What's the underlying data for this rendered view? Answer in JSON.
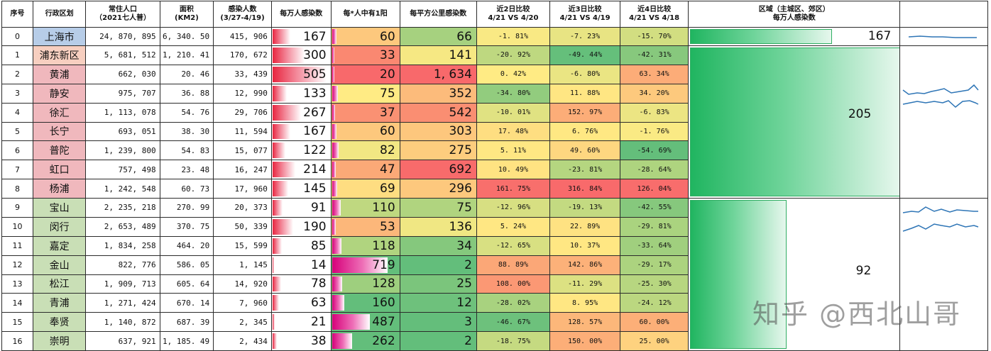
{
  "headers": {
    "idx": "序号",
    "district": "行政区划",
    "pop_l1": "常住人口",
    "pop_l2": "（2021七人普）",
    "area_l1": "面积",
    "area_l2": "(KM2)",
    "inf_l1": "感染人数",
    "inf_l2": "(3/27-4/19)",
    "per10k": "每万人感染数",
    "ratio": "每*人中有1阳",
    "perkm2": "每平方公里感染数",
    "c2_l1": "近2日比较",
    "c2_l2": "4/21 VS 4/20",
    "c3_l1": "近3日比较",
    "c3_l2": "4/21 VS 4/19",
    "c4_l1": "近4日比较",
    "c4_l2": "4/21 VS 4/18",
    "region_l1": "区域（主城区、郊区）",
    "region_l2": "每万人感染数"
  },
  "rows": [
    {
      "idx": "0",
      "name": "上海市",
      "pop": "24, 870, 895",
      "area": "6, 340. 50",
      "inf": "415, 906",
      "per10k": "167",
      "ratio": "60",
      "perkm2": "66",
      "c2": "-1. 81%",
      "c3": "-7. 23%",
      "c4": "-15. 70%"
    },
    {
      "idx": "1",
      "name": "浦东新区",
      "pop": "5, 681, 512",
      "area": "1, 210. 41",
      "inf": "170, 672",
      "per10k": "300",
      "ratio": "33",
      "perkm2": "141",
      "c2": "-20. 92%",
      "c3": "-49. 44%",
      "c4": "-42. 31%"
    },
    {
      "idx": "2",
      "name": "黄浦",
      "pop": "662, 030",
      "area": "20. 46",
      "inf": "33, 439",
      "per10k": "505",
      "ratio": "20",
      "perkm2": "1, 634",
      "c2": "0. 42%",
      "c3": "-6. 80%",
      "c4": "63. 34%"
    },
    {
      "idx": "3",
      "name": "静安",
      "pop": "975, 707",
      "area": "36. 88",
      "inf": "12, 990",
      "per10k": "133",
      "ratio": "75",
      "perkm2": "352",
      "c2": "-34. 80%",
      "c3": "11. 88%",
      "c4": "34. 20%"
    },
    {
      "idx": "4",
      "name": "徐汇",
      "pop": "1, 113, 078",
      "area": "54. 76",
      "inf": "29, 706",
      "per10k": "267",
      "ratio": "37",
      "perkm2": "542",
      "c2": "-10. 01%",
      "c3": "152. 97%",
      "c4": "-6. 83%"
    },
    {
      "idx": "5",
      "name": "长宁",
      "pop": "693, 051",
      "area": "38. 30",
      "inf": "11, 594",
      "per10k": "167",
      "ratio": "60",
      "perkm2": "303",
      "c2": "17. 48%",
      "c3": "6. 76%",
      "c4": "-1. 76%"
    },
    {
      "idx": "6",
      "name": "普陀",
      "pop": "1, 239, 800",
      "area": "54. 83",
      "inf": "15, 077",
      "per10k": "122",
      "ratio": "82",
      "perkm2": "275",
      "c2": "5. 11%",
      "c3": "49. 60%",
      "c4": "-54. 69%"
    },
    {
      "idx": "7",
      "name": "虹口",
      "pop": "757, 498",
      "area": "23. 48",
      "inf": "16, 247",
      "per10k": "214",
      "ratio": "47",
      "perkm2": "692",
      "c2": "10. 49%",
      "c3": "-23. 81%",
      "c4": "-28. 64%"
    },
    {
      "idx": "8",
      "name": "杨浦",
      "pop": "1, 242, 548",
      "area": "60. 73",
      "inf": "17, 960",
      "per10k": "145",
      "ratio": "69",
      "perkm2": "296",
      "c2": "161. 75%",
      "c3": "316. 84%",
      "c4": "126. 04%"
    },
    {
      "idx": "9",
      "name": "宝山",
      "pop": "2, 235, 218",
      "area": "270. 99",
      "inf": "20, 373",
      "per10k": "91",
      "ratio": "110",
      "perkm2": "75",
      "c2": "-12. 96%",
      "c3": "-19. 13%",
      "c4": "-42. 55%"
    },
    {
      "idx": "10",
      "name": "闵行",
      "pop": "2, 653, 489",
      "area": "370. 75",
      "inf": "50, 339",
      "per10k": "190",
      "ratio": "53",
      "perkm2": "136",
      "c2": "5. 24%",
      "c3": "22. 89%",
      "c4": "-29. 81%"
    },
    {
      "idx": "11",
      "name": "嘉定",
      "pop": "1, 834, 258",
      "area": "464. 20",
      "inf": "15, 599",
      "per10k": "85",
      "ratio": "118",
      "perkm2": "34",
      "c2": "-12. 65%",
      "c3": "10. 37%",
      "c4": "-33. 64%"
    },
    {
      "idx": "12",
      "name": "金山",
      "pop": "822, 776",
      "area": "586. 05",
      "inf": "1, 145",
      "per10k": "14",
      "ratio": "719",
      "perkm2": "2",
      "c2": "88. 89%",
      "c3": "142. 86%",
      "c4": "-29. 17%"
    },
    {
      "idx": "13",
      "name": "松江",
      "pop": "1, 909, 713",
      "area": "605. 64",
      "inf": "14, 920",
      "per10k": "78",
      "ratio": "128",
      "perkm2": "25",
      "c2": "108. 00%",
      "c3": "-11. 29%",
      "c4": "-25. 30%"
    },
    {
      "idx": "14",
      "name": "青浦",
      "pop": "1, 271, 424",
      "area": "670. 14",
      "inf": "7, 960",
      "per10k": "63",
      "ratio": "160",
      "perkm2": "12",
      "c2": "-28. 02%",
      "c3": "8. 95%",
      "c4": "-24. 12%"
    },
    {
      "idx": "15",
      "name": "奉贤",
      "pop": "1, 140, 872",
      "area": "687. 39",
      "inf": "2, 345",
      "per10k": "21",
      "ratio": "487",
      "perkm2": "3",
      "c2": "-46. 67%",
      "c3": "128. 57%",
      "c4": "60. 00%"
    },
    {
      "idx": "16",
      "name": "崇明",
      "pop": "637, 921",
      "area": "1, 185. 49",
      "inf": "2, 434",
      "per10k": "38",
      "ratio": "262",
      "perkm2": "2",
      "c2": "-18. 75%",
      "c3": "150. 00%",
      "c4": "25. 00%"
    }
  ],
  "region": {
    "city_value": "167",
    "urban_value": "205",
    "suburb_value": "92",
    "city_fill": 0.81,
    "urban_fill": 1.0,
    "suburb_fill": 0.45
  },
  "colors": {
    "name_city": "#b7cde8",
    "name_pudong": "#f7cfc0",
    "name_urban": "#f0b8bd",
    "name_suburb": "#c9dfb6",
    "spark_line": "#2e75b6"
  },
  "watermark": "知乎 @西北山哥"
}
